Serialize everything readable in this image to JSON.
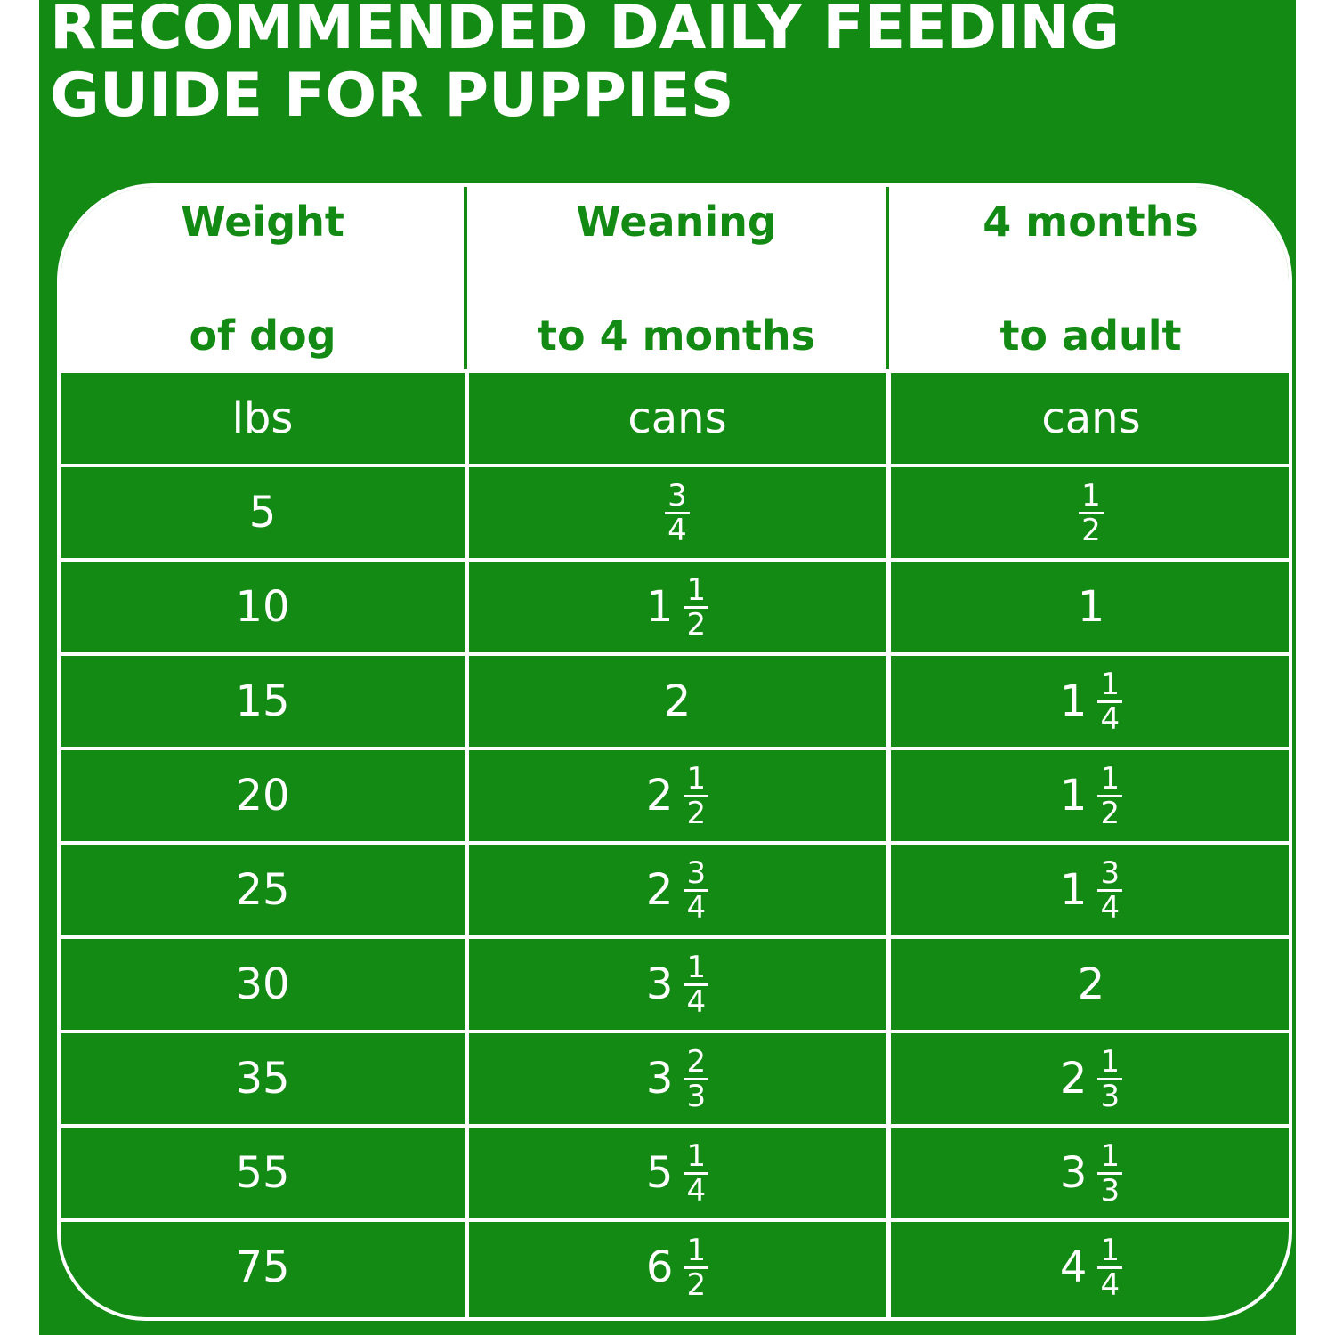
{
  "title_line1": "RECOMMENDED DAILY FEEDING",
  "title_line2": "GUIDE FOR PUPPIES",
  "colors": {
    "brand_green": "#138a14",
    "white": "#ffffff"
  },
  "headers": [
    {
      "line1": "Weight",
      "line2": "of dog"
    },
    {
      "line1": "Weaning",
      "line2": "to 4 months"
    },
    {
      "line1": "4 months",
      "line2": "to adult"
    }
  ],
  "units": [
    "lbs",
    "cans",
    "cans"
  ],
  "rows": [
    {
      "weight": "5",
      "weaning": {
        "whole": "",
        "num": "3",
        "den": "4"
      },
      "adult": {
        "whole": "",
        "num": "1",
        "den": "2"
      }
    },
    {
      "weight": "10",
      "weaning": {
        "whole": "1",
        "num": "1",
        "den": "2"
      },
      "adult": {
        "whole": "1",
        "num": "",
        "den": ""
      }
    },
    {
      "weight": "15",
      "weaning": {
        "whole": "2",
        "num": "",
        "den": ""
      },
      "adult": {
        "whole": "1",
        "num": "1",
        "den": "4"
      }
    },
    {
      "weight": "20",
      "weaning": {
        "whole": "2",
        "num": "1",
        "den": "2"
      },
      "adult": {
        "whole": "1",
        "num": "1",
        "den": "2"
      }
    },
    {
      "weight": "25",
      "weaning": {
        "whole": "2",
        "num": "3",
        "den": "4"
      },
      "adult": {
        "whole": "1",
        "num": "3",
        "den": "4"
      }
    },
    {
      "weight": "30",
      "weaning": {
        "whole": "3",
        "num": "1",
        "den": "4"
      },
      "adult": {
        "whole": "2",
        "num": "",
        "den": ""
      }
    },
    {
      "weight": "35",
      "weaning": {
        "whole": "3",
        "num": "2",
        "den": "3"
      },
      "adult": {
        "whole": "2",
        "num": "1",
        "den": "3"
      }
    },
    {
      "weight": "55",
      "weaning": {
        "whole": "5",
        "num": "1",
        "den": "4"
      },
      "adult": {
        "whole": "3",
        "num": "1",
        "den": "3"
      }
    },
    {
      "weight": "75",
      "weaning": {
        "whole": "6",
        "num": "1",
        "den": "2"
      },
      "adult": {
        "whole": "4",
        "num": "1",
        "den": "4"
      }
    }
  ]
}
